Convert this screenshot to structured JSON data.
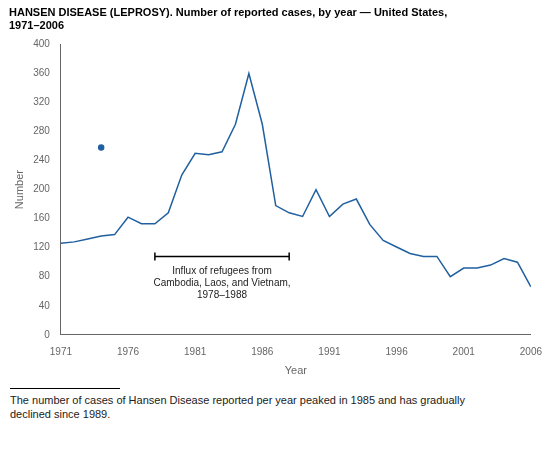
{
  "chart_data": {
    "type": "line",
    "title": [
      "HANSEN DISEASE (LEPROSY). Number of reported cases, by year — United States,",
      "1971–2006"
    ],
    "x_label": "Year",
    "y_label": "Number",
    "footnote": "The number of cases of Hansen Disease reported per year peaked in 1985 and has gradually\ndeclined since 1989.",
    "x": [
      1971,
      1972,
      1973,
      1974,
      1975,
      1976,
      1977,
      1978,
      1979,
      1980,
      1981,
      1982,
      1983,
      1984,
      1985,
      1986,
      1987,
      1988,
      1989,
      1990,
      1991,
      1992,
      1993,
      1994,
      1995,
      1996,
      1997,
      1998,
      1999,
      2000,
      2001,
      2002,
      2003,
      2004,
      2005,
      2006
    ],
    "series": [
      {
        "color": "#2060a0",
        "values": [
          126,
          128,
          132,
          136,
          138,
          162,
          153,
          153,
          168,
          220,
          250,
          248,
          252,
          290,
          360,
          290,
          178,
          168,
          163,
          200,
          163,
          180,
          187,
          152,
          130,
          121,
          112,
          108,
          108,
          80,
          92,
          92,
          96,
          105,
          100,
          66
        ]
      },
      {
        "type": "scatter",
        "color": "#2060a0",
        "marker": "dot",
        "x": [
          1974
        ],
        "values": [
          258
        ]
      }
    ],
    "xlim": [
      1971,
      2006
    ],
    "xticks": [
      1971,
      1976,
      1981,
      1986,
      1991,
      1996,
      2001,
      2006
    ],
    "ylim": [
      0,
      400
    ],
    "yticks": [
      0,
      40,
      80,
      120,
      160,
      200,
      240,
      280,
      320,
      360,
      400
    ],
    "grid": false,
    "annotations": [
      {
        "text": "Influx of refugees from\nCambodia, Laos, and Vietnam,\n1978–1988",
        "x_start": 1978,
        "x_end": 1988,
        "y": 108,
        "text_y": 95
      }
    ]
  }
}
